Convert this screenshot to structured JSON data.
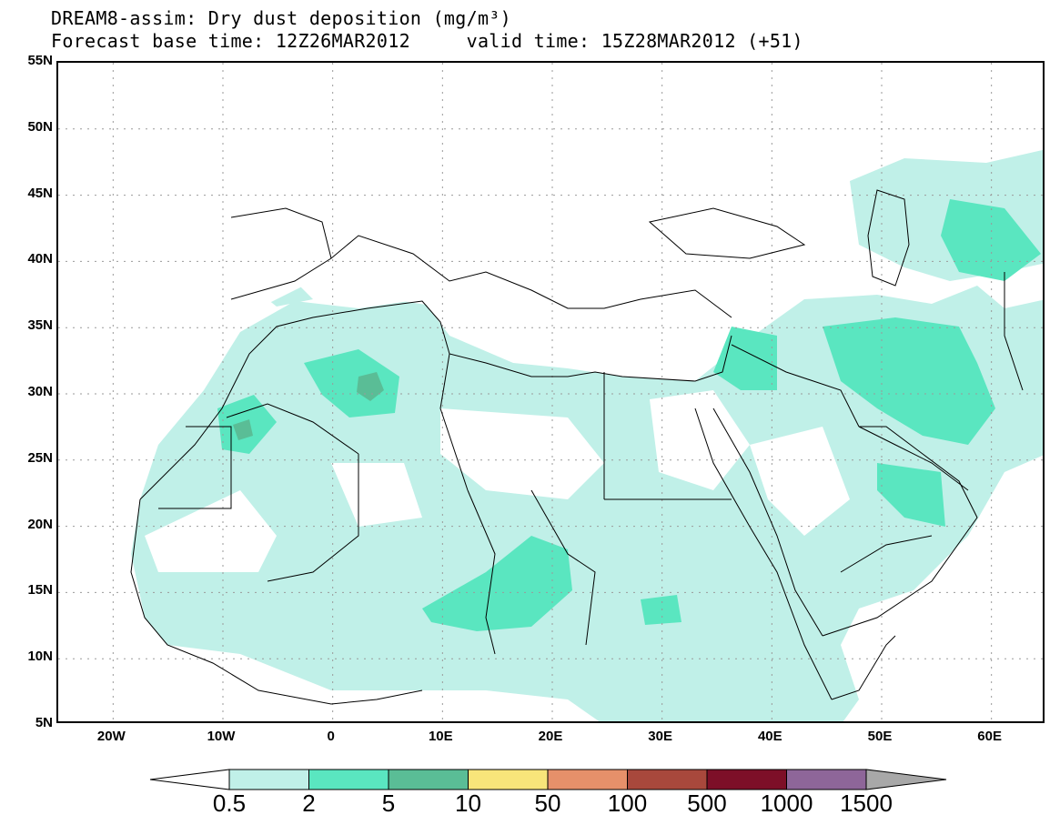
{
  "title": {
    "line1": "DREAM8-assim: Dry dust deposition (mg/m³)",
    "line2": "Forecast base time: 12Z26MAR2012     valid time: 15Z28MAR2012 (+51)"
  },
  "map": {
    "projection": "lat-lon",
    "lon_range": [
      -25,
      65
    ],
    "lat_range": [
      5,
      55
    ],
    "lat_labels": [
      "55N",
      "50N",
      "45N",
      "40N",
      "35N",
      "30N",
      "25N",
      "20N",
      "15N",
      "10N",
      "5N"
    ],
    "lon_labels": [
      "20W",
      "10W",
      "0",
      "10E",
      "20E",
      "30E",
      "40E",
      "50E",
      "60E"
    ],
    "gridlines": "dotted"
  },
  "colorbar": {
    "labels": [
      "0.5",
      "2",
      "5",
      "10",
      "50",
      "100",
      "500",
      "1000",
      "1500"
    ],
    "colors": [
      "#ffffff",
      "#c0f0e8",
      "#5ae6c0",
      "#5abd96",
      "#f8e57a",
      "#e6906a",
      "#a8483c",
      "#7d0f28",
      "#8e6699",
      "#a8a8a8"
    ]
  }
}
